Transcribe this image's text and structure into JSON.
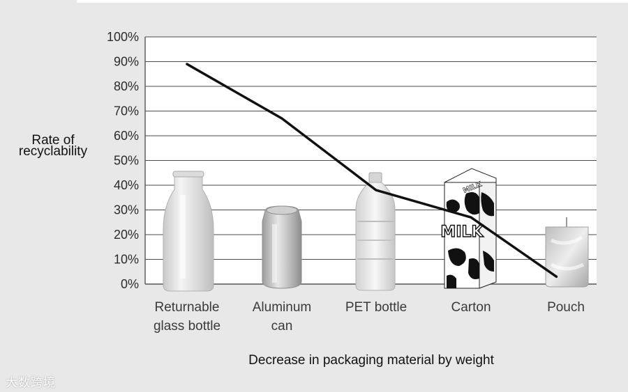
{
  "chart_data": {
    "type": "line",
    "categories": [
      "Returnable glass bottle",
      "Aluminum can",
      "PET bottle",
      "Carton",
      "Pouch"
    ],
    "category_lines": [
      [
        "Returnable",
        "glass bottle"
      ],
      [
        "Aluminum",
        "can"
      ],
      [
        "PET bottle"
      ],
      [
        "Carton"
      ],
      [
        "Pouch"
      ]
    ],
    "line_points": [
      {
        "x": 0.0,
        "y": 89
      },
      {
        "x": 1.0,
        "y": 67
      },
      {
        "x": 2.0,
        "y": 38
      },
      {
        "x": 3.0,
        "y": 27
      },
      {
        "x": 3.9,
        "y": 3
      }
    ],
    "ylabel": [
      "Rate of",
      "recyclability"
    ],
    "xlabel": "Decrease in packaging material by weight",
    "ylim": [
      0,
      100
    ],
    "yticks": [
      "0%",
      "10%",
      "20%",
      "30%",
      "40%",
      "50%",
      "60%",
      "70%",
      "80%",
      "90%",
      "100%"
    ],
    "grid": true,
    "line_color": "#111111",
    "package_icons": [
      "glass-bottle",
      "aluminum-can",
      "pet-bottle",
      "milk-carton",
      "pouch"
    ],
    "carton_text": "MILK"
  },
  "watermark": "大数跨境"
}
